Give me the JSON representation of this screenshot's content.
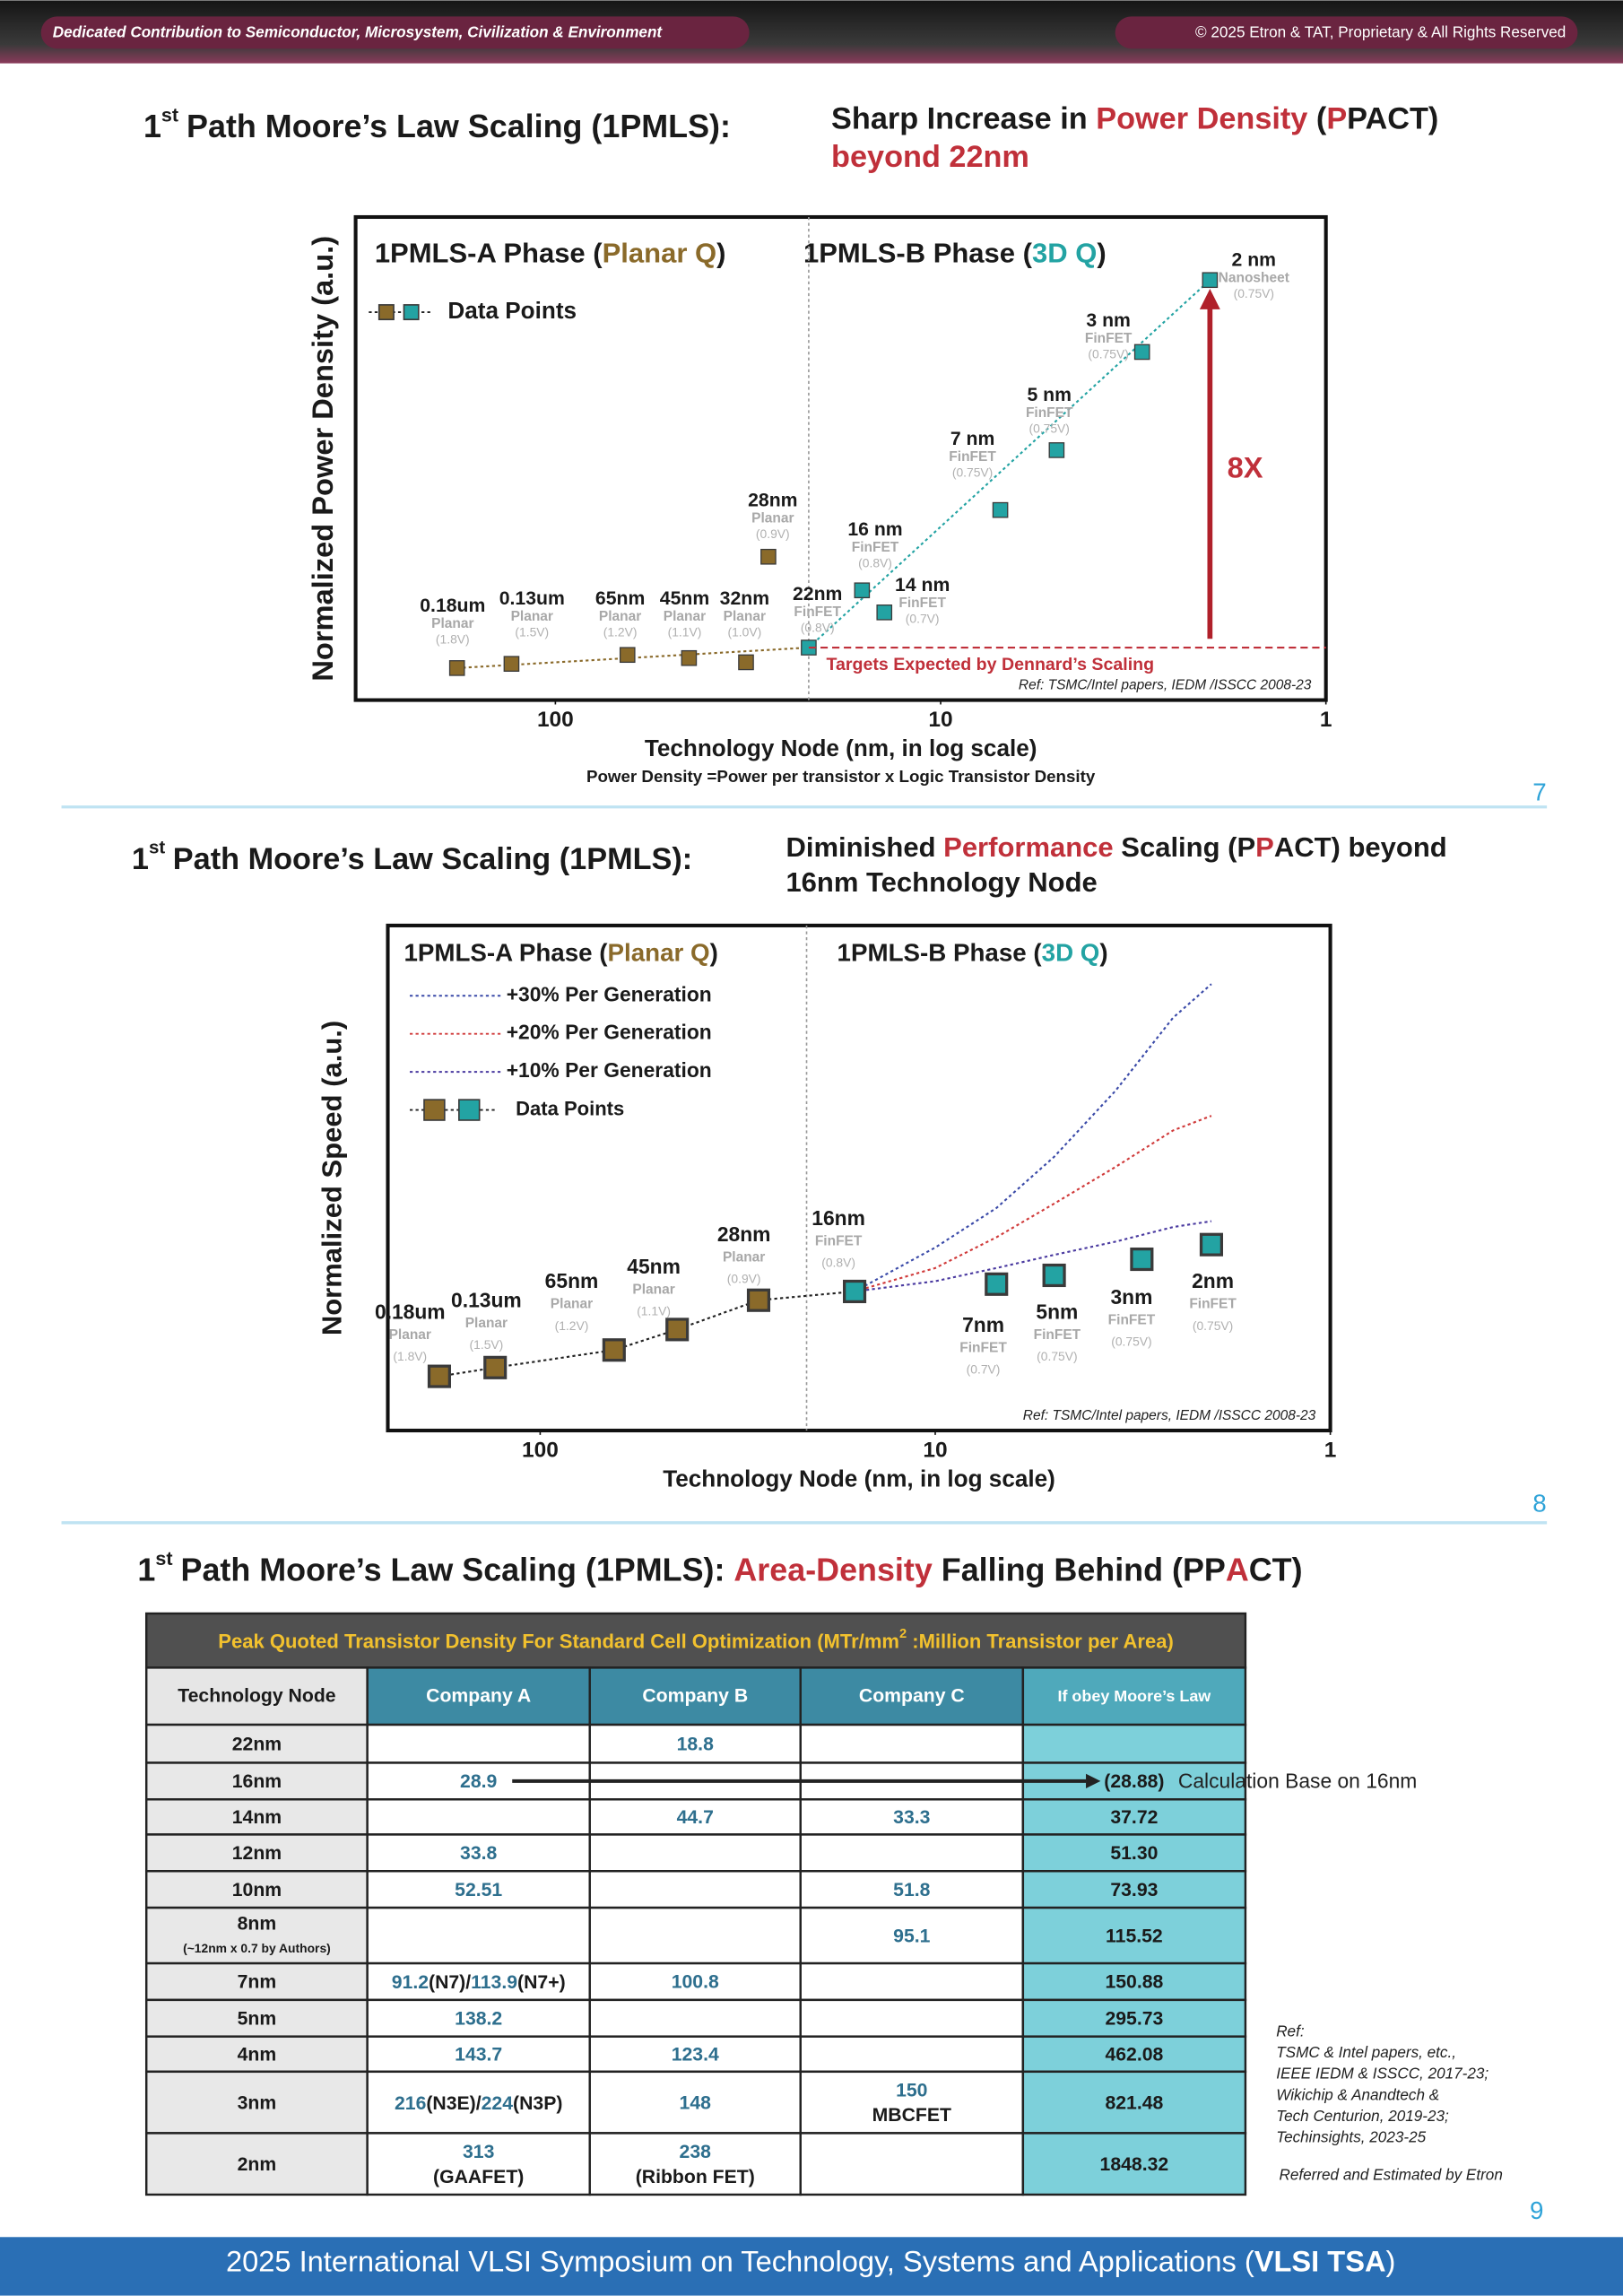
{
  "header": {
    "left": "Dedicated Contribution to Semiconductor, Microsystem, Civilization & Environment",
    "right": "© 2025 Etron & TAT, Proprietary & All Rights Reserved"
  },
  "chart_data": [
    {
      "type": "scatter",
      "title": {
        "lead": "1",
        "sup": "st",
        "main": "Path Moore’s Law Scaling (1PMLS):",
        "lines": [
          [
            {
              "t": "Sharp Increase in "
            },
            {
              "t": "Power Density",
              "c": "#c0303a"
            },
            {
              "t": " ("
            },
            {
              "t": "P",
              "c": "#c0303a"
            },
            {
              "t": "PACT)"
            }
          ],
          [
            {
              "t": "beyond 22nm",
              "c": "#c0303a"
            }
          ]
        ]
      },
      "phases": [
        [
          {
            "t": "1PMLS-A Phase ("
          },
          {
            "t": "Planar Q",
            "c": "#8a6a2a"
          },
          {
            "t": ")"
          }
        ],
        [
          {
            "t": "1PMLS-B Phase ("
          },
          {
            "t": "3D Q",
            "c": "#23a3a3"
          },
          {
            "t": ")"
          }
        ]
      ],
      "legend": "Data Points",
      "series": [
        {
          "color": "#8a6a2a",
          "x": [
            180,
            130,
            65,
            45,
            32,
            28
          ],
          "values": [
            0.61,
            0.69,
            0.86,
            0.8,
            0.72,
            2.73
          ],
          "labels": [
            "0.18um",
            "0.13um",
            "65nm",
            "45nm",
            "32nm",
            "28nm"
          ],
          "subs": [
            "Planar",
            "Planar",
            "Planar",
            "Planar",
            "Planar",
            "Planar"
          ],
          "volts": [
            "(1.8V)",
            "(1.5V)",
            "(1.2V)",
            "(1.1V)",
            "(1.0V)",
            "(0.9V)"
          ]
        },
        {
          "color": "#23a3a3",
          "x": [
            22,
            16,
            14,
            7,
            5,
            3,
            2
          ],
          "values": [
            1,
            2.09,
            1.67,
            3.62,
            4.76,
            6.63,
            8
          ],
          "labels": [
            "22nm",
            "16 nm",
            "14 nm",
            "7 nm",
            "5 nm",
            "3 nm",
            "2 nm"
          ],
          "subs": [
            "FinFET",
            "FinFET",
            "FinFET",
            "FinFET",
            "FinFET",
            "FinFET",
            "Nanosheet"
          ],
          "volts": [
            "(0.8V)",
            "(0.8V)",
            "(0.7V)",
            "(0.75V)",
            "(0.75V)",
            "(0.75V)",
            "(0.75V)"
          ]
        }
      ],
      "xlabel": "Technology Node (nm, in log scale)",
      "ylabel": "Normalized Power Density (a.u.)",
      "note": "Power Density =Power per transistor x Logic Transistor Density",
      "annotations": {
        "ratio": "8X",
        "target": "Targets Expected by Dennard’s Scaling",
        "ref": "Ref: TSMC/Intel papers, IEDM /ISSCC 2008-23"
      },
      "xscale": "log",
      "xlim": [
        330,
        1
      ],
      "xticks": [
        100,
        10,
        1
      ],
      "ylim": [
        0,
        9.2
      ]
    },
    {
      "type": "scatter",
      "title": {
        "lead": "1",
        "sup": "st",
        "main": "Path Moore’s Law Scaling (1PMLS):",
        "lines": [
          [
            {
              "t": "Diminished "
            },
            {
              "t": "Performance",
              "c": "#c0303a"
            },
            {
              "t": " Scaling (P"
            },
            {
              "t": "P",
              "c": "#c0303a"
            },
            {
              "t": "ACT) beyond"
            }
          ],
          [
            {
              "t": "16nm Technology Node"
            }
          ]
        ]
      },
      "phases": [
        [
          {
            "t": "1PMLS-A Phase ("
          },
          {
            "t": "Planar Q",
            "c": "#8a6a2a"
          },
          {
            "t": ")"
          }
        ],
        [
          {
            "t": "1PMLS-B Phase ("
          },
          {
            "t": "3D Q",
            "c": "#23a3a3"
          },
          {
            "t": ")"
          }
        ]
      ],
      "legend": "Data Points",
      "trends": [
        {
          "name": "+30% Per Generation",
          "color": "#3a4aa8",
          "x": [
            16,
            10,
            7,
            5,
            3.5,
            2.5,
            2
          ],
          "values": [
            1.55,
            1.85,
            2.12,
            2.47,
            2.92,
            3.42,
            3.65
          ]
        },
        {
          "name": "+20% Per Generation",
          "color": "#d03a3a",
          "x": [
            16,
            10,
            7,
            5,
            3.5,
            2.5,
            2
          ],
          "values": [
            1.55,
            1.71,
            1.92,
            2.15,
            2.4,
            2.65,
            2.75
          ]
        },
        {
          "name": "+10% Per Generation",
          "color": "#4a3aa0",
          "x": [
            16,
            10,
            7,
            5,
            3.5,
            2.5,
            2
          ],
          "values": [
            1.55,
            1.62,
            1.71,
            1.8,
            1.89,
            1.99,
            2.03
          ]
        }
      ],
      "series": [
        {
          "color": "#8a6a2a",
          "x": [
            180,
            130,
            65,
            45,
            28
          ],
          "values": [
            0.97,
            1.03,
            1.15,
            1.29,
            1.49
          ],
          "labels": [
            "0.18um",
            "0.13um",
            "65nm",
            "45nm",
            "28nm"
          ],
          "subs": [
            "Planar",
            "Planar",
            "Planar",
            "Planar",
            "Planar"
          ],
          "volts": [
            "(1.8V)",
            "(1.5V)",
            "(1.2V)",
            "(1.1V)",
            "(0.9V)"
          ]
        },
        {
          "color": "#23a3a3",
          "x": [
            16,
            7,
            5,
            3,
            2
          ],
          "values": [
            1.55,
            1.6,
            1.66,
            1.77,
            1.87
          ],
          "labels": [
            "16nm",
            "7nm",
            "5nm",
            "3nm",
            "2nm"
          ],
          "subs": [
            "FinFET",
            "FinFET",
            "FinFET",
            "FinFET",
            "FinFET"
          ],
          "volts": [
            "(0.8V)",
            "(0.7V)",
            "(0.75V)",
            "(0.75V)",
            "(0.75V)"
          ]
        }
      ],
      "xlabel": "Technology Node (nm, in log scale)",
      "ylabel": "Normalized Speed (a.u.)",
      "annotations": {
        "ref": "Ref: TSMC/Intel papers, IEDM /ISSCC 2008-23"
      },
      "xscale": "log",
      "xlim": [
        243,
        1
      ],
      "xticks": [
        100,
        10,
        1
      ],
      "ylim": [
        0.6,
        4.05
      ]
    }
  ],
  "table": {
    "title": {
      "lead": "1",
      "sup": "st",
      "main": [
        {
          "t": "Path Moore’s Law Scaling (1PMLS): "
        },
        {
          "t": "Area-Density",
          "c": "#c0303a"
        },
        {
          "t": " Falling Behind (PP"
        },
        {
          "t": "A",
          "c": "#c0303a"
        },
        {
          "t": "CT)"
        }
      ]
    },
    "caption": {
      "pre": "Peak Quoted Transistor Density For Standard Cell Optimization (MTr/mm",
      "sup": "2",
      "post": " :Million Transistor per Area)"
    },
    "columns": [
      "Technology Node",
      "Company A",
      "Company B",
      "Company C",
      "If obey Moore’s Law"
    ],
    "rows": [
      [
        "22nm",
        null,
        "18.8",
        null,
        null
      ],
      [
        "16nm",
        "28.9",
        null,
        null,
        "(28.88)"
      ],
      [
        "14nm",
        null,
        "44.7",
        "33.3",
        "37.72"
      ],
      [
        "12nm",
        "33.8",
        null,
        null,
        "51.30"
      ],
      [
        "10nm",
        "52.51",
        null,
        "51.8",
        "73.93"
      ],
      [
        {
          "lines": [
            "8nm",
            "(~12nm x 0.7 by Authors)"
          ]
        },
        null,
        null,
        "95.1",
        "115.52"
      ],
      [
        "7nm",
        {
          "runs": [
            {
              "t": "91.2",
              "c": "#2e6f8e"
            },
            {
              "t": "(N7)/"
            },
            {
              "t": "113.9",
              "c": "#2e6f8e"
            },
            {
              "t": "(N7+)"
            }
          ]
        },
        "100.8",
        null,
        "150.88"
      ],
      [
        "5nm",
        "138.2",
        null,
        null,
        "295.73"
      ],
      [
        "4nm",
        "143.7",
        "123.4",
        null,
        "462.08"
      ],
      [
        "3nm",
        {
          "runs": [
            {
              "t": "216",
              "c": "#2e6f8e"
            },
            {
              "t": "(N3E)/"
            },
            {
              "t": "224",
              "c": "#2e6f8e"
            },
            {
              "t": "(N3P)"
            }
          ]
        },
        "148",
        {
          "lines": [
            "150",
            "MBCFET"
          ]
        },
        "821.48"
      ],
      [
        "2nm",
        {
          "lines": [
            "313",
            "(GAAFET)"
          ]
        },
        {
          "lines": [
            "238",
            "(Ribbon FET)"
          ]
        },
        null,
        "1848.32"
      ]
    ],
    "note": "Calculation Base on 16nm",
    "refs": [
      "Ref:",
      "TSMC & Intel papers, etc.,",
      "IEEE IEDM & ISSCC, 2017-23;",
      "Wikichip & Anandtech &",
      "Tech Centurion, 2019-23;",
      "Techinsights, 2023-25"
    ],
    "ref_credit": "Referred and Estimated by Etron"
  },
  "page_numbers": [
    "7",
    "8",
    "9"
  ],
  "footer": [
    {
      "t": "2025 International VLSI Symposium on Technology, Systems and Applications ("
    },
    {
      "t": "VLSI TSA",
      "b": true
    },
    {
      "t": ")"
    }
  ]
}
